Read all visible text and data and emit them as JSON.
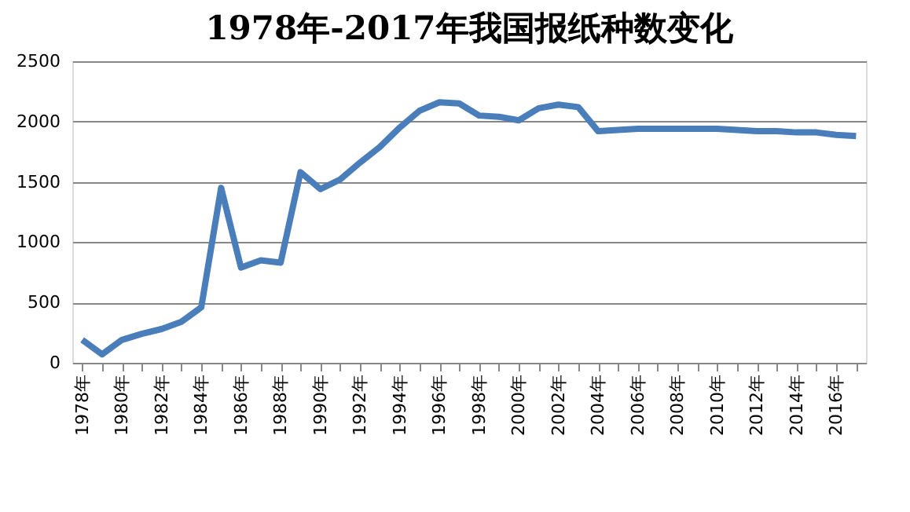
{
  "chart_data": {
    "type": "line",
    "title": "1978年-2017年我国报纸种数变化",
    "categories": [
      "1978年",
      null,
      "1980年",
      null,
      "1982年",
      null,
      "1984年",
      null,
      "1986年",
      null,
      "1988年",
      null,
      "1990年",
      null,
      "1992年",
      null,
      "1994年",
      null,
      "1996年",
      null,
      "1998年",
      null,
      "2000年",
      null,
      "2002年",
      null,
      "2004年",
      null,
      "2006年",
      null,
      "2008年",
      null,
      "2010年",
      null,
      "2012年",
      null,
      "2014年",
      null,
      "2016年",
      null
    ],
    "series": [
      {
        "color": "#4a7ebb",
        "values": [
          190,
          70,
          190,
          240,
          280,
          340,
          460,
          1450,
          790,
          850,
          830,
          1580,
          1440,
          1520,
          1660,
          1790,
          1950,
          2090,
          2160,
          2150,
          2050,
          2040,
          2010,
          2110,
          2140,
          2120,
          1920,
          1930,
          1940,
          1940,
          1940,
          1940,
          1940,
          1930,
          1920,
          1920,
          1910,
          1910,
          1890,
          1880
        ]
      }
    ],
    "ylim": [
      0,
      2500
    ],
    "yticks": [
      0,
      500,
      1000,
      1500,
      2000,
      2500
    ],
    "grid": "y",
    "marker": "none",
    "line_style": "solid"
  }
}
